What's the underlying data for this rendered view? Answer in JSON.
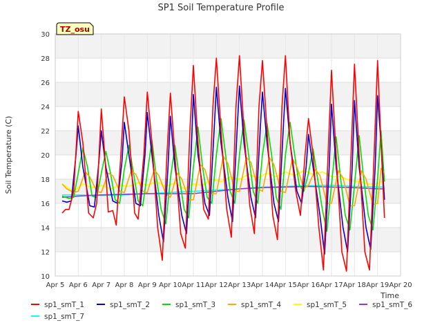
{
  "chart_data": {
    "type": "line",
    "title": "SP1 Soil Temperature Profile",
    "xlabel": "Time",
    "ylabel": "Soil Temperature (C)",
    "badge": "TZ_osu",
    "xlim": [
      5,
      20
    ],
    "ylim": [
      10,
      30
    ],
    "x_ticks": [
      {
        "value": 5,
        "label": "Apr 5"
      },
      {
        "value": 6,
        "label": "Apr 6"
      },
      {
        "value": 7,
        "label": "Apr 7"
      },
      {
        "value": 8,
        "label": "Apr 8"
      },
      {
        "value": 9,
        "label": "Apr 9"
      },
      {
        "value": 10,
        "label": "Apr 10"
      },
      {
        "value": 11,
        "label": "Apr 11"
      },
      {
        "value": 12,
        "label": "Apr 12"
      },
      {
        "value": 13,
        "label": "Apr 13"
      },
      {
        "value": 14,
        "label": "Apr 14"
      },
      {
        "value": 15,
        "label": "Apr 15"
      },
      {
        "value": 16,
        "label": "Apr 16"
      },
      {
        "value": 17,
        "label": "Apr 17"
      },
      {
        "value": 18,
        "label": "Apr 18"
      },
      {
        "value": 19,
        "label": "Apr 19"
      },
      {
        "value": 20,
        "label": "Apr 20"
      }
    ],
    "y_ticks": [
      10,
      12,
      14,
      16,
      18,
      20,
      22,
      24,
      26,
      28,
      30
    ],
    "grid": "horizontal bands",
    "legend_placement": "bottom",
    "series": [
      {
        "name": "sp1_smT_1",
        "color": "#ff0000",
        "x": [
          5.3,
          5.45,
          5.6,
          5.8,
          6.0,
          6.2,
          6.45,
          6.65,
          6.8,
          7.0,
          7.15,
          7.3,
          7.5,
          7.65,
          7.85,
          8.0,
          8.2,
          8.45,
          8.6,
          8.85,
          9.0,
          9.2,
          9.45,
          9.65,
          9.85,
          10.0,
          10.2,
          10.45,
          10.65,
          10.85,
          11.0,
          11.2,
          11.45,
          11.65,
          11.85,
          12.0,
          12.2,
          12.45,
          12.65,
          12.85,
          13.0,
          13.2,
          13.45,
          13.65,
          13.85,
          14.0,
          14.2,
          14.45,
          14.65,
          14.85,
          15.0,
          15.2,
          15.45,
          15.65,
          15.85,
          16.0,
          16.2,
          16.45,
          16.65,
          16.85,
          17.0,
          17.2,
          17.45,
          17.65,
          17.85,
          18.0,
          18.2,
          18.45,
          18.65,
          18.85,
          19.0,
          19.15,
          19.3
        ],
        "y": [
          15.2,
          15.5,
          15.5,
          17.0,
          23.6,
          21.0,
          15.2,
          14.8,
          16.0,
          23.8,
          20.0,
          15.3,
          15.4,
          14.2,
          20.0,
          24.8,
          22.0,
          15.2,
          14.7,
          20.0,
          25.2,
          21.0,
          14.0,
          11.3,
          20.0,
          25.1,
          20.0,
          13.5,
          12.3,
          22.0,
          27.4,
          21.0,
          15.5,
          14.7,
          24.0,
          28.0,
          22.0,
          15.5,
          13.2,
          24.0,
          28.2,
          22.0,
          15.8,
          13.5,
          24.0,
          27.8,
          22.0,
          15.0,
          13.0,
          24.0,
          28.2,
          21.0,
          17.0,
          15.0,
          20.0,
          23.0,
          20.0,
          14.0,
          10.5,
          20.0,
          27.0,
          20.0,
          12.0,
          10.4,
          20.0,
          27.5,
          20.0,
          12.0,
          10.5,
          20.0,
          27.8,
          21.0,
          14.8
        ]
      },
      {
        "name": "sp1_smT_2",
        "color": "#0000cc",
        "x": [
          5.3,
          5.5,
          5.7,
          5.9,
          6.0,
          6.2,
          6.5,
          6.7,
          6.9,
          7.0,
          7.2,
          7.5,
          7.7,
          7.9,
          8.0,
          8.2,
          8.5,
          8.7,
          8.9,
          9.0,
          9.2,
          9.5,
          9.7,
          9.9,
          10.0,
          10.2,
          10.5,
          10.7,
          10.9,
          11.0,
          11.2,
          11.5,
          11.7,
          11.9,
          12.0,
          12.2,
          12.5,
          12.7,
          12.9,
          13.0,
          13.2,
          13.5,
          13.7,
          13.9,
          14.0,
          14.2,
          14.5,
          14.7,
          14.9,
          15.0,
          15.2,
          15.5,
          15.7,
          15.9,
          16.0,
          16.2,
          16.5,
          16.7,
          16.9,
          17.0,
          17.2,
          17.5,
          17.7,
          17.9,
          18.0,
          18.2,
          18.5,
          18.7,
          18.9,
          19.0,
          19.15,
          19.3
        ],
        "y": [
          16.2,
          16.1,
          16.2,
          20.0,
          22.4,
          19.0,
          15.8,
          15.7,
          19.5,
          22.0,
          19.0,
          16.2,
          16.0,
          19.5,
          22.7,
          20.0,
          16.0,
          15.8,
          20.0,
          23.5,
          20.0,
          15.0,
          12.8,
          19.0,
          23.2,
          19.0,
          15.0,
          13.5,
          20.0,
          25.0,
          20.0,
          16.0,
          15.0,
          22.0,
          25.6,
          21.0,
          16.5,
          14.5,
          22.0,
          25.7,
          21.0,
          16.5,
          14.8,
          22.0,
          25.2,
          21.0,
          16.0,
          14.5,
          22.0,
          25.5,
          21.0,
          17.0,
          16.0,
          19.0,
          21.7,
          19.0,
          15.0,
          11.8,
          19.0,
          24.2,
          19.0,
          14.0,
          12.0,
          19.0,
          24.5,
          19.0,
          14.0,
          12.2,
          19.0,
          24.9,
          21.0,
          16.3
        ]
      },
      {
        "name": "sp1_smT_3",
        "color": "#00dd00",
        "x": [
          5.3,
          5.6,
          5.8,
          6.0,
          6.2,
          6.4,
          6.6,
          6.8,
          7.0,
          7.2,
          7.4,
          7.6,
          7.8,
          8.0,
          8.2,
          8.4,
          8.6,
          8.8,
          9.0,
          9.2,
          9.4,
          9.6,
          9.8,
          10.0,
          10.2,
          10.4,
          10.6,
          10.8,
          11.0,
          11.2,
          11.4,
          11.6,
          11.8,
          12.0,
          12.2,
          12.4,
          12.6,
          12.8,
          13.0,
          13.2,
          13.4,
          13.6,
          13.8,
          14.0,
          14.2,
          14.4,
          14.6,
          14.8,
          15.0,
          15.2,
          15.4,
          15.6,
          15.8,
          16.0,
          16.2,
          16.4,
          16.6,
          16.8,
          17.0,
          17.2,
          17.4,
          17.6,
          17.8,
          18.0,
          18.2,
          18.4,
          18.6,
          18.8,
          19.0,
          19.15,
          19.3
        ],
        "y": [
          16.6,
          16.4,
          16.5,
          18.5,
          20.6,
          19.0,
          16.6,
          16.5,
          18.5,
          20.3,
          18.5,
          16.3,
          16.0,
          18.8,
          20.8,
          18.5,
          16.2,
          15.8,
          18.5,
          21.2,
          18.0,
          15.5,
          14.3,
          18.0,
          20.8,
          18.0,
          15.5,
          14.8,
          19.0,
          22.3,
          19.0,
          16.5,
          16.0,
          20.0,
          23.0,
          20.0,
          17.0,
          16.0,
          20.0,
          22.9,
          20.0,
          17.0,
          16.0,
          20.0,
          22.6,
          20.0,
          16.5,
          15.5,
          20.0,
          22.7,
          20.0,
          17.5,
          17.0,
          18.5,
          20.5,
          18.0,
          15.5,
          13.7,
          17.5,
          21.5,
          18.0,
          15.0,
          13.8,
          17.5,
          21.6,
          18.0,
          15.0,
          13.8,
          18.0,
          22.0,
          17.8
        ]
      },
      {
        "name": "sp1_smT_4",
        "color": "#ffa500",
        "x": [
          5.3,
          5.5,
          5.8,
          6.0,
          6.3,
          6.5,
          6.8,
          7.0,
          7.3,
          7.5,
          7.8,
          8.0,
          8.3,
          8.5,
          8.8,
          9.0,
          9.3,
          9.5,
          9.8,
          10.0,
          10.3,
          10.5,
          10.8,
          11.0,
          11.3,
          11.5,
          11.8,
          12.0,
          12.3,
          12.5,
          12.8,
          13.0,
          13.3,
          13.5,
          13.8,
          14.0,
          14.3,
          14.5,
          14.8,
          15.0,
          15.3,
          15.5,
          15.8,
          16.0,
          16.3,
          16.5,
          16.8,
          17.0,
          17.3,
          17.5,
          17.8,
          18.0,
          18.3,
          18.5,
          18.8,
          19.0,
          19.15,
          19.3
        ],
        "y": [
          17.6,
          17.2,
          16.9,
          17.0,
          18.6,
          18.2,
          17.0,
          16.9,
          18.5,
          18.3,
          17.0,
          16.9,
          18.7,
          18.4,
          17.0,
          16.9,
          18.8,
          18.3,
          16.8,
          16.5,
          18.5,
          18.0,
          16.3,
          16.3,
          19.2,
          18.8,
          16.8,
          16.8,
          19.9,
          19.3,
          17.0,
          17.0,
          19.8,
          19.4,
          17.2,
          17.0,
          19.8,
          19.2,
          17.0,
          16.9,
          19.7,
          19.0,
          17.2,
          17.5,
          18.8,
          18.3,
          16.0,
          16.0,
          18.7,
          18.1,
          15.8,
          15.8,
          18.7,
          18.0,
          15.9,
          16.0,
          18.9,
          18.5
        ]
      },
      {
        "name": "sp1_smT_5",
        "color": "#ffff00",
        "x": [
          5.3,
          5.8,
          6.2,
          6.6,
          7.0,
          7.4,
          7.8,
          8.2,
          8.6,
          9.0,
          9.4,
          9.8,
          10.2,
          10.6,
          11.0,
          11.4,
          11.8,
          12.2,
          12.6,
          13.0,
          13.4,
          13.8,
          14.2,
          14.6,
          15.0,
          15.4,
          15.8,
          16.2,
          16.6,
          17.0,
          17.4,
          17.8,
          18.2,
          18.6,
          19.0,
          19.15,
          19.3
        ],
        "y": [
          17.6,
          17.0,
          17.6,
          17.3,
          17.5,
          17.2,
          17.5,
          17.4,
          17.7,
          17.5,
          17.8,
          17.4,
          17.7,
          17.2,
          17.6,
          17.5,
          18.0,
          17.8,
          18.2,
          18.0,
          18.4,
          18.1,
          18.5,
          18.2,
          18.6,
          18.3,
          18.7,
          18.4,
          18.6,
          18.2,
          18.2,
          17.9,
          17.8,
          17.6,
          17.6,
          17.8,
          17.8
        ]
      },
      {
        "name": "sp1_smT_6",
        "color": "#9932cc",
        "x": [
          5.3,
          6.0,
          7.0,
          8.0,
          9.0,
          10.0,
          11.0,
          12.0,
          13.0,
          14.0,
          15.0,
          16.0,
          17.0,
          18.0,
          19.0,
          19.3
        ],
        "y": [
          16.5,
          16.6,
          16.7,
          16.75,
          16.8,
          16.8,
          16.8,
          17.0,
          17.2,
          17.3,
          17.35,
          17.4,
          17.35,
          17.3,
          17.2,
          17.2
        ]
      },
      {
        "name": "sp1_smT_7",
        "color": "#00ffff",
        "x": [
          5.3,
          6.0,
          7.0,
          8.0,
          9.0,
          10.0,
          11.0,
          12.0,
          13.0,
          14.0,
          15.0,
          16.0,
          17.0,
          18.0,
          19.0,
          19.3
        ],
        "y": [
          16.7,
          16.7,
          16.65,
          16.7,
          16.8,
          16.9,
          17.0,
          17.1,
          17.2,
          17.35,
          17.4,
          17.45,
          17.5,
          17.4,
          17.35,
          17.35
        ]
      }
    ]
  }
}
